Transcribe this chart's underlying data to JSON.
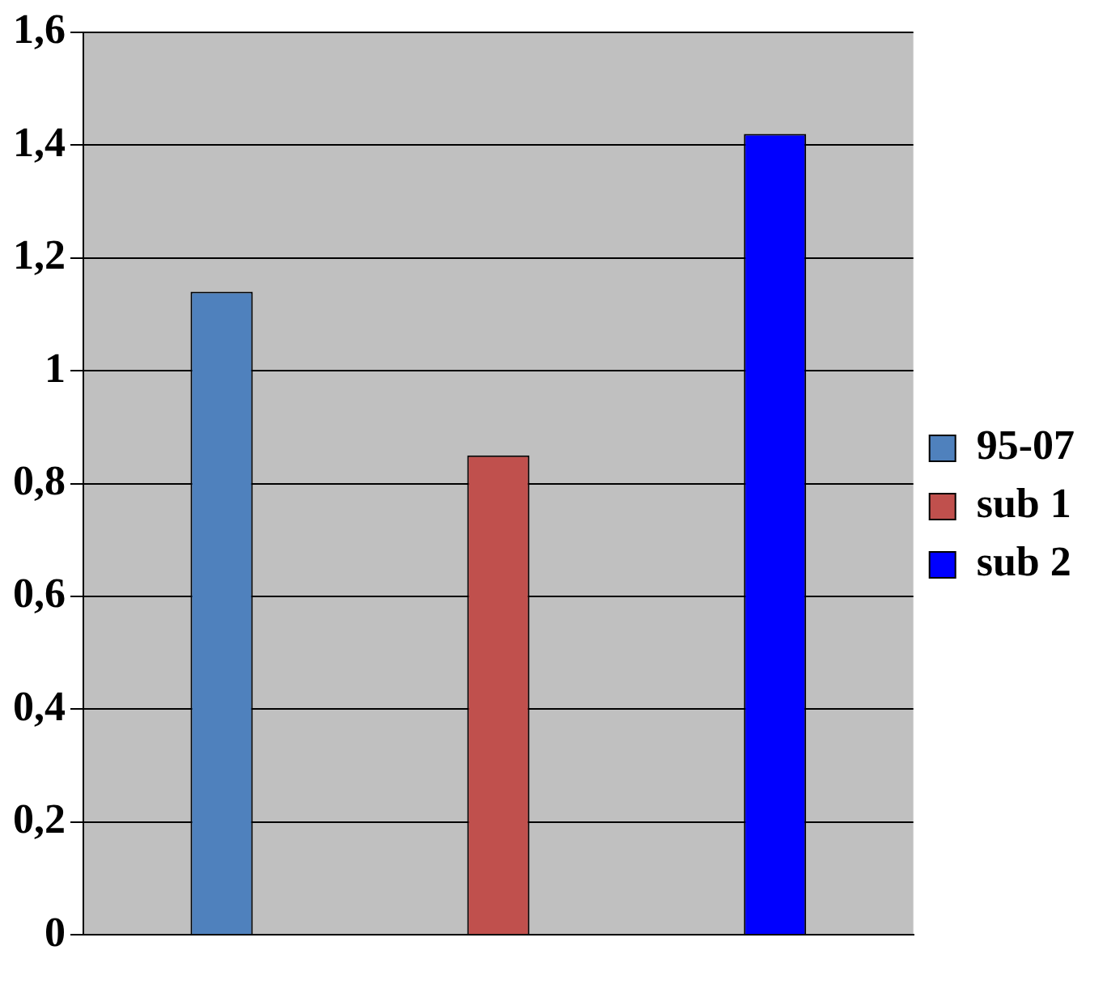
{
  "chart_data": {
    "type": "bar",
    "categories": [
      null,
      null,
      null
    ],
    "series": [
      {
        "name": "95-07",
        "color": "#4f81bd",
        "values": [
          1.14,
          null,
          null
        ]
      },
      {
        "name": "sub 1",
        "color": "#c0504d",
        "values": [
          null,
          0.85,
          null
        ]
      },
      {
        "name": "sub 2",
        "color": "#0000ff",
        "values": [
          null,
          null,
          1.42
        ]
      }
    ],
    "ylim": [
      0,
      1.6
    ],
    "yticks": [
      0,
      {
        "value": 0.2,
        "label": "0,2"
      },
      {
        "value": 0.4,
        "label": "0,4"
      },
      {
        "value": 0.6,
        "label": "0,6"
      },
      {
        "value": 0.8,
        "label": "0,8"
      },
      1,
      {
        "value": 1.2,
        "label": "1,2"
      },
      {
        "value": 1.4,
        "label": "1,4"
      },
      {
        "value": 1.6,
        "label": "1,6"
      }
    ],
    "grid": "y",
    "legend": "right"
  }
}
